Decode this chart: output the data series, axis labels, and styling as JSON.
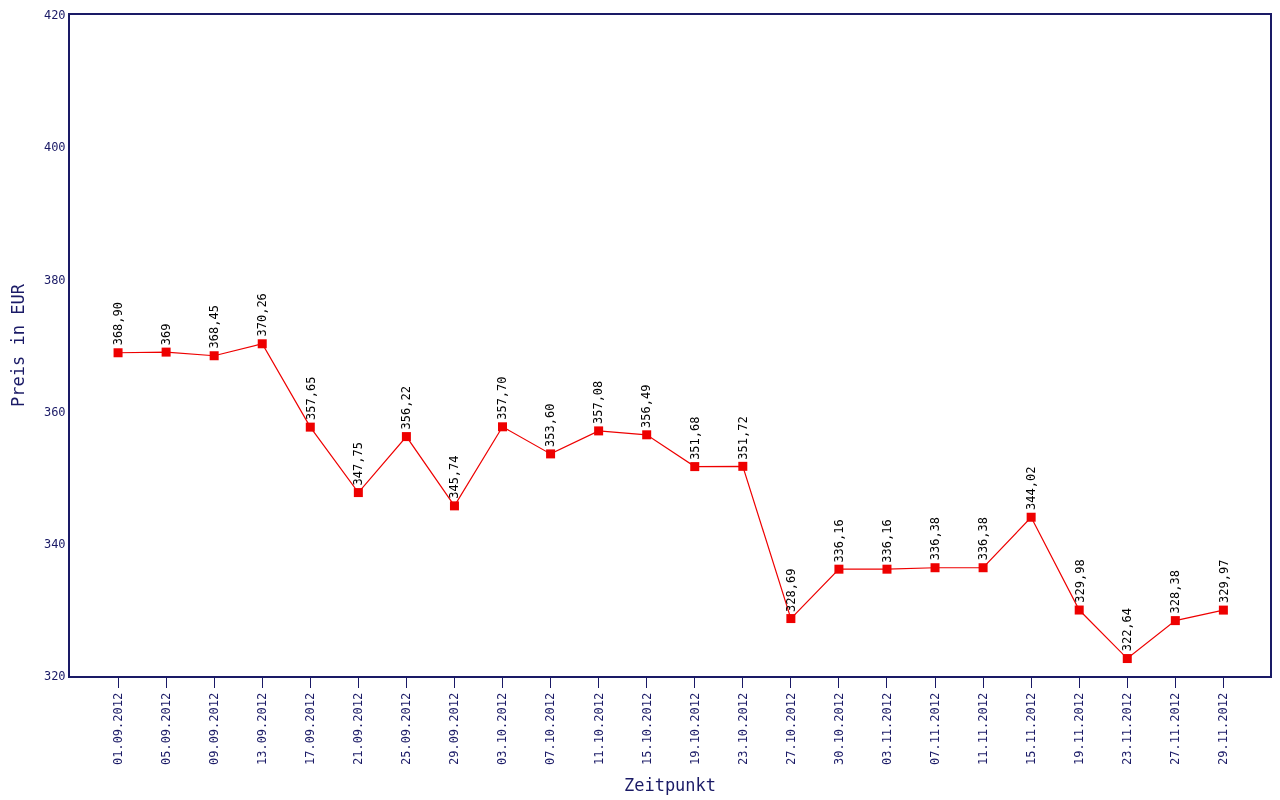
{
  "chart_data": {
    "type": "line",
    "xlabel": "Zeitpunkt",
    "ylabel": "Preis in EUR",
    "categories": [
      "01.09.2012",
      "05.09.2012",
      "09.09.2012",
      "13.09.2012",
      "17.09.2012",
      "21.09.2012",
      "25.09.2012",
      "29.09.2012",
      "03.10.2012",
      "07.10.2012",
      "11.10.2012",
      "15.10.2012",
      "19.10.2012",
      "23.10.2012",
      "27.10.2012",
      "30.10.2012",
      "03.11.2012",
      "07.11.2012",
      "11.11.2012",
      "15.11.2012",
      "19.11.2012",
      "23.11.2012",
      "27.11.2012",
      "29.11.2012"
    ],
    "values": [
      368.9,
      369,
      368.45,
      370.26,
      357.65,
      347.75,
      356.22,
      345.74,
      357.7,
      353.6,
      357.08,
      356.49,
      351.68,
      351.72,
      328.69,
      336.16,
      336.16,
      336.38,
      336.38,
      344.02,
      329.98,
      322.64,
      328.38,
      329.97
    ],
    "value_labels": [
      "368,90",
      "369",
      "368,45",
      "370,26",
      "357,65",
      "347,75",
      "356,22",
      "345,74",
      "357,70",
      "353,60",
      "357,08",
      "356,49",
      "351,68",
      "351,72",
      "328,69",
      "336,16",
      "336,16",
      "336,38",
      "336,38",
      "344,02",
      "329,98",
      "322,64",
      "328,38",
      "329,97"
    ],
    "color": "#ee0000",
    "marker": "square",
    "line_style": "solid",
    "grid": false,
    "legend": false,
    "ylim": [
      320,
      420
    ],
    "yticks": [
      320,
      340,
      360,
      380,
      400,
      420
    ]
  }
}
